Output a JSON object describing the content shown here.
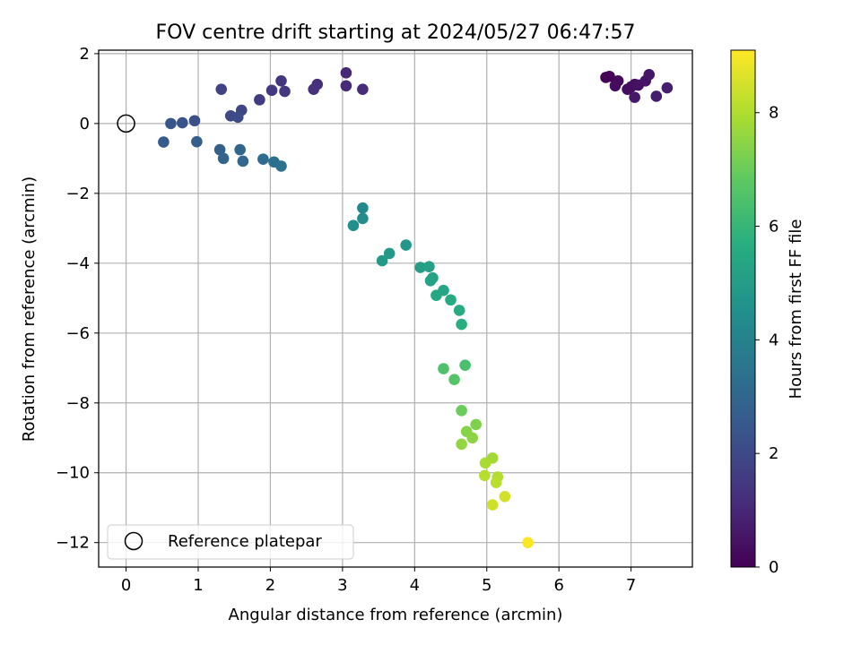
{
  "chart_data": {
    "type": "scatter",
    "title": "FOV centre drift starting at 2024/05/27 06:47:57",
    "xlabel": "Angular distance from reference (arcmin)",
    "ylabel": "Rotation from reference (arcmin)",
    "xlim": [
      -0.38,
      7.85
    ],
    "ylim": [
      -12.7,
      2.1
    ],
    "xticks": [
      0,
      1,
      2,
      3,
      4,
      5,
      6,
      7
    ],
    "yticks": [
      2,
      0,
      -2,
      -4,
      -6,
      -8,
      -10,
      -12
    ],
    "xtick_labels": [
      "0",
      "1",
      "2",
      "3",
      "4",
      "5",
      "6",
      "7"
    ],
    "ytick_labels": [
      "2",
      "0",
      "−2",
      "−4",
      "−6",
      "−8",
      "−10",
      "−12"
    ],
    "grid": true,
    "colormap": "viridis",
    "colorbar": {
      "label": "Hours from first FF file",
      "range": [
        0,
        9.1
      ],
      "ticks": [
        0,
        2,
        4,
        6,
        8
      ],
      "tick_labels": [
        "0",
        "2",
        "4",
        "6",
        "8"
      ]
    },
    "legend": {
      "position": "lower-left",
      "entries": [
        {
          "label": "Reference platepar",
          "marker": "open-circle"
        }
      ]
    },
    "reference_point": {
      "x": 0,
      "y": 0
    },
    "points": [
      {
        "x": 6.65,
        "y": 1.32,
        "c": 0.05
      },
      {
        "x": 6.7,
        "y": 1.35,
        "c": 0.1
      },
      {
        "x": 6.82,
        "y": 1.22,
        "c": 0.2
      },
      {
        "x": 6.78,
        "y": 1.08,
        "c": 0.25
      },
      {
        "x": 6.95,
        "y": 0.98,
        "c": 0.3
      },
      {
        "x": 7.0,
        "y": 1.05,
        "c": 0.35
      },
      {
        "x": 7.05,
        "y": 1.12,
        "c": 0.4
      },
      {
        "x": 7.1,
        "y": 1.1,
        "c": 0.45
      },
      {
        "x": 7.2,
        "y": 1.22,
        "c": 0.5
      },
      {
        "x": 7.25,
        "y": 1.4,
        "c": 0.55
      },
      {
        "x": 7.05,
        "y": 0.75,
        "c": 0.6
      },
      {
        "x": 7.35,
        "y": 0.78,
        "c": 0.7
      },
      {
        "x": 7.5,
        "y": 1.02,
        "c": 0.75
      },
      {
        "x": 3.05,
        "y": 1.45,
        "c": 1.0
      },
      {
        "x": 3.05,
        "y": 1.08,
        "c": 1.05
      },
      {
        "x": 3.28,
        "y": 0.98,
        "c": 1.1
      },
      {
        "x": 2.65,
        "y": 1.12,
        "c": 1.2
      },
      {
        "x": 2.6,
        "y": 0.98,
        "c": 1.25
      },
      {
        "x": 2.15,
        "y": 1.22,
        "c": 1.4
      },
      {
        "x": 2.2,
        "y": 0.92,
        "c": 1.45
      },
      {
        "x": 2.02,
        "y": 0.95,
        "c": 1.5
      },
      {
        "x": 1.85,
        "y": 0.68,
        "c": 1.6
      },
      {
        "x": 1.32,
        "y": 0.98,
        "c": 1.8
      },
      {
        "x": 1.6,
        "y": 0.38,
        "c": 1.9
      },
      {
        "x": 1.45,
        "y": 0.22,
        "c": 2.0
      },
      {
        "x": 1.55,
        "y": 0.18,
        "c": 2.05
      },
      {
        "x": 0.95,
        "y": 0.08,
        "c": 2.2
      },
      {
        "x": 0.78,
        "y": 0.02,
        "c": 2.3
      },
      {
        "x": 0.62,
        "y": 0.0,
        "c": 2.4
      },
      {
        "x": 0.52,
        "y": -0.53,
        "c": 2.6
      },
      {
        "x": 0.98,
        "y": -0.52,
        "c": 2.7
      },
      {
        "x": 1.3,
        "y": -0.75,
        "c": 2.8
      },
      {
        "x": 1.35,
        "y": -1.0,
        "c": 2.9
      },
      {
        "x": 1.58,
        "y": -0.75,
        "c": 3.0
      },
      {
        "x": 1.62,
        "y": -1.08,
        "c": 3.05
      },
      {
        "x": 1.9,
        "y": -1.02,
        "c": 3.2
      },
      {
        "x": 2.05,
        "y": -1.1,
        "c": 3.3
      },
      {
        "x": 2.15,
        "y": -1.22,
        "c": 3.4
      },
      {
        "x": 3.28,
        "y": -2.42,
        "c": 4.3
      },
      {
        "x": 3.28,
        "y": -2.72,
        "c": 4.4
      },
      {
        "x": 3.15,
        "y": -2.92,
        "c": 4.5
      },
      {
        "x": 3.88,
        "y": -3.48,
        "c": 4.8
      },
      {
        "x": 3.65,
        "y": -3.72,
        "c": 4.85
      },
      {
        "x": 3.55,
        "y": -3.93,
        "c": 4.9
      },
      {
        "x": 4.08,
        "y": -4.12,
        "c": 5.1
      },
      {
        "x": 4.2,
        "y": -4.1,
        "c": 5.15
      },
      {
        "x": 4.25,
        "y": -4.42,
        "c": 5.2
      },
      {
        "x": 4.22,
        "y": -4.5,
        "c": 5.25
      },
      {
        "x": 4.4,
        "y": -4.78,
        "c": 5.35
      },
      {
        "x": 4.3,
        "y": -4.92,
        "c": 5.4
      },
      {
        "x": 4.5,
        "y": -5.05,
        "c": 5.5
      },
      {
        "x": 4.62,
        "y": -5.35,
        "c": 5.6
      },
      {
        "x": 4.65,
        "y": -5.75,
        "c": 5.7
      },
      {
        "x": 4.7,
        "y": -6.92,
        "c": 6.4
      },
      {
        "x": 4.4,
        "y": -7.02,
        "c": 6.5
      },
      {
        "x": 4.55,
        "y": -7.33,
        "c": 6.6
      },
      {
        "x": 4.65,
        "y": -8.22,
        "c": 7.0
      },
      {
        "x": 4.85,
        "y": -8.62,
        "c": 7.3
      },
      {
        "x": 4.72,
        "y": -8.82,
        "c": 7.4
      },
      {
        "x": 4.8,
        "y": -9.0,
        "c": 7.5
      },
      {
        "x": 4.65,
        "y": -9.18,
        "c": 7.6
      },
      {
        "x": 5.08,
        "y": -9.58,
        "c": 7.8
      },
      {
        "x": 4.98,
        "y": -9.72,
        "c": 7.9
      },
      {
        "x": 5.15,
        "y": -10.12,
        "c": 8.05
      },
      {
        "x": 4.97,
        "y": -10.08,
        "c": 8.1
      },
      {
        "x": 5.13,
        "y": -10.28,
        "c": 8.15
      },
      {
        "x": 5.25,
        "y": -10.68,
        "c": 8.5
      },
      {
        "x": 5.08,
        "y": -10.92,
        "c": 8.4
      },
      {
        "x": 5.57,
        "y": -12.0,
        "c": 9.05
      }
    ]
  }
}
